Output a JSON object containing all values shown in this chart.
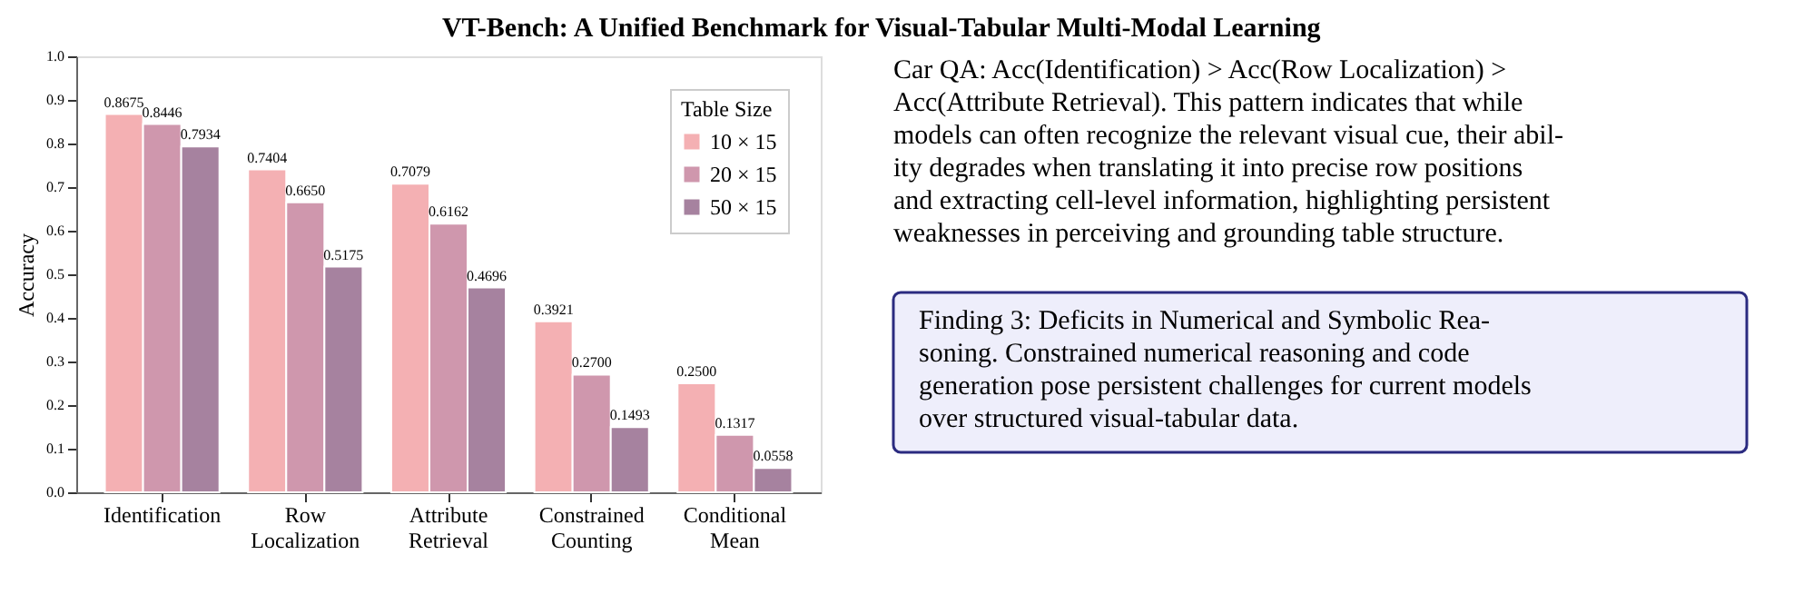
{
  "chart_data": {
    "type": "bar",
    "title": "VT-Bench: A Unified Benchmark for Visual-Tabular Multi-Modal Learning",
    "ylabel": "Accuracy",
    "legend_title": "Table Size",
    "legend": "top right",
    "grid": false,
    "categories": [
      "Identification",
      "Row Localization",
      "Attribute Retrieval",
      "Constrained Counting",
      "Conditional Mean"
    ],
    "ylim": [
      0,
      1.0
    ],
    "yticks": [
      {
        "value": 0,
        "label": "0.0"
      },
      0.1,
      0.2,
      0.3,
      0.4,
      0.5,
      0.6,
      0.7,
      0.8,
      0.9,
      {
        "value": 1.0,
        "label": "1.0"
      }
    ],
    "series": [
      {
        "name": "10 × 15",
        "color": "#f4b0b3",
        "values": [
          0.8675,
          0.7404,
          0.7079,
          0.3921,
          0.25
        ],
        "value_labels": [
          "0.8675",
          "0.7404",
          "0.7079",
          "0.3921",
          "0.2500"
        ]
      },
      {
        "name": "20 × 15",
        "color": "#cf97ad",
        "values": [
          0.8446,
          0.665,
          0.6162,
          0.27,
          0.1317
        ],
        "value_labels": [
          "0.8446",
          "0.6650",
          "0.6162",
          "0.2700",
          "0.1317"
        ]
      },
      {
        "name": "50 × 15",
        "color": "#a6829f",
        "values": [
          0.7934,
          0.5175,
          0.4696,
          0.1493,
          0.0558
        ],
        "value_labels": [
          "0.7934",
          "0.5175",
          "0.4696",
          "0.1493",
          "0.0558"
        ]
      }
    ],
    "annotations": [
      "Car QA: Acc(Identification) > Acc(Row Localization) >\nAcc(Attribute Retrieval). This pattern indicates that while\nmodels can often recognize the relevant visual cue, their abil-\nity degrades when translating it into precise row positions\nand extracting cell-level information, highlighting persistent\nweaknesses in perceiving and grounding table structure.",
      "Finding 3: Deficits in Numerical and Symbolic Rea-\nsoning.  Constrained numerical reasoning and code\ngeneration pose persistent challenges for current models\nover structured visual-tabular data."
    ]
  }
}
